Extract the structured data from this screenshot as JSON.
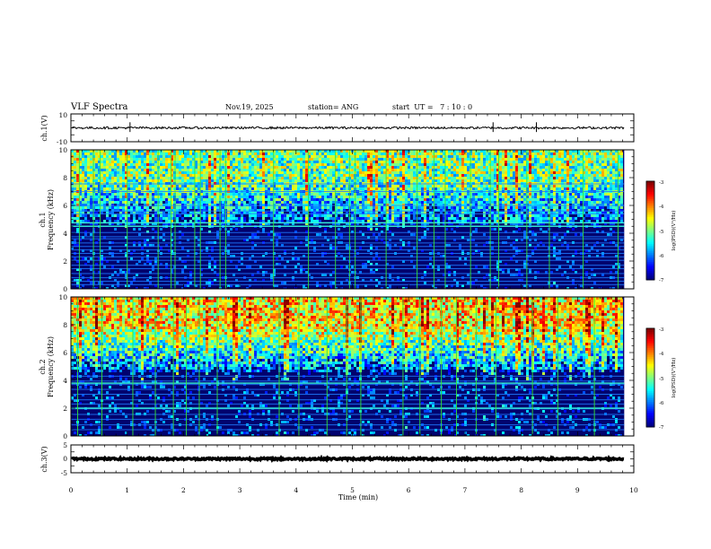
{
  "header": {
    "title": "VLF Spectra",
    "date": "Nov.19, 2025",
    "station": "station= ANG",
    "start": "start  UT =   7 : 10 : 0"
  },
  "colors": {
    "background": "#ffffff",
    "ink": "#000000",
    "grid_lines": "#34e834"
  },
  "chart_data": [
    {
      "type": "line",
      "name": "ch1-waveform",
      "ylabel": "ch.1(V)",
      "ylim": [
        -10,
        10
      ],
      "yticks": [
        "10",
        "-10"
      ],
      "signal_level": 0,
      "noise_amplitude": 0.8,
      "spikes_min": [
        1.05,
        7.5,
        8.27
      ],
      "xlim": [
        0,
        10
      ]
    },
    {
      "type": "heatmap",
      "name": "ch1-spectrogram",
      "ylabel_top": "ch.1",
      "ylabel": "Frequency (kHz)",
      "ylim": [
        0,
        10
      ],
      "yticks": [
        "0",
        "2",
        "4",
        "6",
        "8",
        "10"
      ],
      "xlim": [
        0,
        10
      ],
      "data_end_min": 9.83,
      "intensity": 0.55,
      "colorbar": {
        "label": "log(PSD)(V²/Hz)",
        "range": [
          -7,
          -3
        ],
        "ticks": [
          "-3",
          "-4",
          "-5",
          "-6",
          "-7"
        ]
      },
      "lines_khz": [
        0.3,
        0.55,
        0.8,
        1.1,
        1.45,
        1.7,
        2.05,
        2.3,
        2.55,
        2.8,
        3.05,
        3.3,
        3.6,
        3.75,
        4.05,
        4.5,
        4.75,
        5.4,
        5.6,
        6.0,
        7.0,
        7.55
      ],
      "bright_lines_khz": [
        4.5,
        4.75
      ],
      "vertical_lines_min": [
        0.15,
        0.4,
        0.52,
        1.0,
        1.55,
        1.78,
        1.85,
        2.2,
        2.3,
        2.65,
        2.75,
        3.6,
        4.22,
        4.7,
        4.95,
        5.05,
        5.6,
        6.15,
        6.45,
        6.65,
        7.1,
        7.45,
        7.6,
        8.1,
        8.5,
        9.1,
        9.72
      ]
    },
    {
      "type": "heatmap",
      "name": "ch2-spectrogram",
      "ylabel_top": "ch.2",
      "ylabel": "Frequency (kHz)",
      "ylim": [
        0,
        10
      ],
      "yticks": [
        "0",
        "2",
        "4",
        "6",
        "8",
        "10"
      ],
      "xlim": [
        0,
        10
      ],
      "data_end_min": 9.83,
      "intensity": 0.85,
      "colorbar": {
        "label": "log(PSD)(V²/Hz)",
        "range": [
          -7,
          -3
        ],
        "ticks": [
          "-3",
          "-4",
          "-5",
          "-6",
          "-7"
        ]
      },
      "lines_khz": [
        0.45,
        0.8,
        1.2,
        1.55,
        1.95,
        2.3,
        2.6,
        3.0,
        3.35,
        3.7,
        3.95,
        4.3
      ],
      "bright_lines_khz": [
        2.0,
        3.8
      ],
      "vertical_lines_min": [
        0.12,
        0.55,
        1.1,
        1.5,
        1.82,
        2.05,
        2.28,
        2.6,
        3.7,
        4.05,
        4.55,
        4.9,
        5.15,
        5.9,
        6.2,
        6.58,
        6.85,
        7.2,
        7.55,
        8.2,
        8.65,
        9.3
      ]
    },
    {
      "type": "line",
      "name": "ch3-waveform",
      "ylabel": "ch.3(V)",
      "ylim": [
        -5,
        5
      ],
      "yticks": [
        "5",
        "0",
        "-5"
      ],
      "signal_level": 0,
      "noise_amplitude": 0.35,
      "xlim": [
        0,
        10
      ]
    }
  ],
  "xaxis": {
    "label": "Time (min)",
    "ticks": [
      "0",
      "1",
      "2",
      "3",
      "4",
      "5",
      "6",
      "7",
      "8",
      "9",
      "10"
    ]
  }
}
